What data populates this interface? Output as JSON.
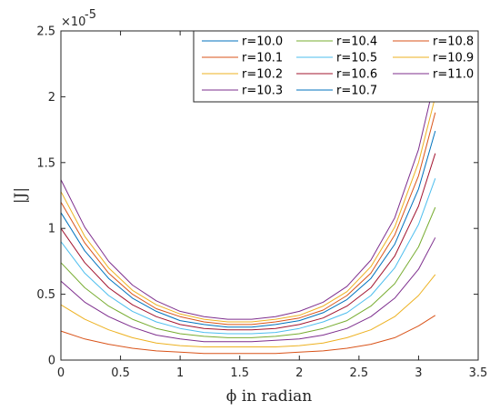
{
  "chart_data": {
    "type": "line",
    "xlabel": "ϕ in radian",
    "ylabel": "|J|",
    "xlim": [
      0,
      3.5
    ],
    "ylim": [
      0,
      2.5
    ],
    "y_exponent_label": "×10",
    "y_exponent": "-5",
    "x_ticks": [
      "0",
      "0.5",
      "1",
      "1.5",
      "2",
      "2.5",
      "3",
      "3.5"
    ],
    "y_ticks": [
      "0",
      "0.5",
      "1",
      "1.5",
      "2",
      "2.5"
    ],
    "grid": false,
    "legend_position": "top-right",
    "x": [
      0,
      0.2,
      0.4,
      0.6,
      0.8,
      1.0,
      1.2,
      1.4,
      1.6,
      1.8,
      2.0,
      2.2,
      2.4,
      2.6,
      2.8,
      3.0,
      3.14
    ],
    "series": [
      {
        "name": "r=10.0",
        "color": "#0072BD",
        "values": [
          0,
          0,
          0,
          0,
          0,
          0,
          0,
          0,
          0,
          0,
          0,
          0,
          0,
          0,
          0,
          0,
          0
        ]
      },
      {
        "name": "r=10.1",
        "color": "#D95319",
        "values": [
          0.22,
          0.16,
          0.12,
          0.09,
          0.07,
          0.06,
          0.05,
          0.05,
          0.05,
          0.05,
          0.06,
          0.07,
          0.09,
          0.12,
          0.17,
          0.26,
          0.34
        ]
      },
      {
        "name": "r=10.2",
        "color": "#EDB120",
        "values": [
          0.42,
          0.31,
          0.23,
          0.17,
          0.13,
          0.11,
          0.1,
          0.1,
          0.1,
          0.1,
          0.11,
          0.13,
          0.17,
          0.23,
          0.33,
          0.49,
          0.65
        ]
      },
      {
        "name": "r=10.3",
        "color": "#7E2F8E",
        "values": [
          0.6,
          0.44,
          0.33,
          0.25,
          0.19,
          0.16,
          0.14,
          0.14,
          0.14,
          0.15,
          0.16,
          0.19,
          0.24,
          0.33,
          0.47,
          0.69,
          0.93
        ]
      },
      {
        "name": "r=10.4",
        "color": "#77AC30",
        "values": [
          0.74,
          0.55,
          0.41,
          0.31,
          0.24,
          0.2,
          0.18,
          0.17,
          0.17,
          0.18,
          0.2,
          0.24,
          0.3,
          0.41,
          0.58,
          0.86,
          1.16
        ]
      },
      {
        "name": "r=10.5",
        "color": "#4DBEEE",
        "values": [
          0.9,
          0.66,
          0.49,
          0.37,
          0.29,
          0.24,
          0.21,
          0.2,
          0.2,
          0.21,
          0.24,
          0.29,
          0.36,
          0.49,
          0.7,
          1.03,
          1.38
        ]
      },
      {
        "name": "r=10.6",
        "color": "#A2142F",
        "values": [
          1.0,
          0.74,
          0.55,
          0.42,
          0.33,
          0.27,
          0.24,
          0.23,
          0.23,
          0.24,
          0.27,
          0.32,
          0.41,
          0.55,
          0.79,
          1.17,
          1.57
        ]
      },
      {
        "name": "r=10.7",
        "color": "#0072BD",
        "values": [
          1.12,
          0.83,
          0.62,
          0.47,
          0.37,
          0.3,
          0.27,
          0.25,
          0.25,
          0.27,
          0.3,
          0.36,
          0.46,
          0.62,
          0.88,
          1.3,
          1.74
        ]
      },
      {
        "name": "r=10.8",
        "color": "#D95319",
        "values": [
          1.2,
          0.89,
          0.66,
          0.5,
          0.39,
          0.33,
          0.29,
          0.27,
          0.27,
          0.29,
          0.32,
          0.38,
          0.49,
          0.66,
          0.95,
          1.4,
          1.88
        ]
      },
      {
        "name": "r=10.9",
        "color": "#EDB120",
        "values": [
          1.28,
          0.94,
          0.7,
          0.53,
          0.42,
          0.35,
          0.31,
          0.29,
          0.29,
          0.31,
          0.34,
          0.41,
          0.52,
          0.71,
          1.01,
          1.5,
          2.0
        ]
      },
      {
        "name": "r=11.0",
        "color": "#7E2F8E",
        "values": [
          1.37,
          1.01,
          0.75,
          0.57,
          0.45,
          0.37,
          0.33,
          0.31,
          0.31,
          0.33,
          0.37,
          0.44,
          0.56,
          0.76,
          1.08,
          1.6,
          2.14
        ]
      }
    ]
  }
}
